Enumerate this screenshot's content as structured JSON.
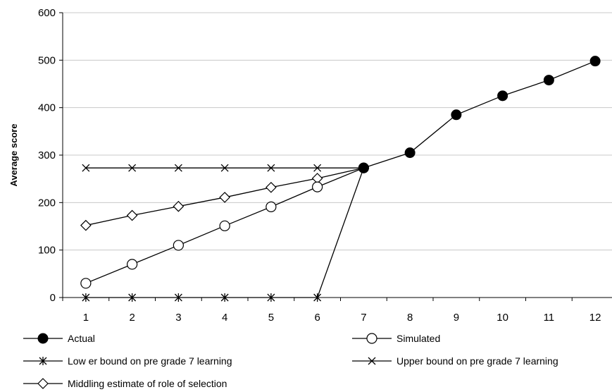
{
  "chart_data": {
    "type": "line",
    "title": "",
    "xlabel": "",
    "ylabel": "Average score",
    "x": [
      1,
      2,
      3,
      4,
      5,
      6,
      7,
      8,
      9,
      10,
      11,
      12
    ],
    "ylim": [
      0,
      600
    ],
    "yticks": [
      0,
      100,
      200,
      300,
      400,
      500,
      600
    ],
    "grid": "horizontal",
    "legend_position": "bottom",
    "series": [
      {
        "name": "Actual",
        "marker": "filled-circle",
        "x": [
          7,
          8,
          9,
          10,
          11,
          12
        ],
        "values": [
          273,
          305,
          385,
          425,
          458,
          498
        ]
      },
      {
        "name": "Simulated",
        "marker": "open-circle",
        "x": [
          1,
          2,
          3,
          4,
          5,
          6,
          7
        ],
        "values": [
          30,
          70,
          110,
          151,
          191,
          233,
          273
        ]
      },
      {
        "name": "Low er bound on pre grade 7 learning",
        "marker": "asterisk",
        "x": [
          1,
          2,
          3,
          4,
          5,
          6,
          7
        ],
        "values": [
          0,
          0,
          0,
          0,
          0,
          0,
          273
        ]
      },
      {
        "name": "Upper bound on pre grade 7 learning",
        "marker": "x",
        "x": [
          1,
          2,
          3,
          4,
          5,
          6,
          7
        ],
        "values": [
          273,
          273,
          273,
          273,
          273,
          273,
          273
        ]
      },
      {
        "name": "Middling estimate of role of selection",
        "marker": "diamond",
        "x": [
          1,
          2,
          3,
          4,
          5,
          6,
          7
        ],
        "values": [
          152,
          173,
          192,
          211,
          232,
          251,
          273
        ]
      }
    ]
  }
}
